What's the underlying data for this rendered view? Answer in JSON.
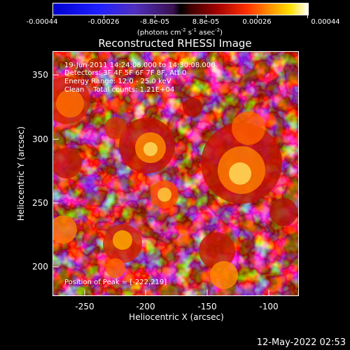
{
  "colorbar": {
    "ticks": [
      "-0.00044",
      "-0.00026",
      "-8.8e-05",
      "8.8e-05",
      "0.00026",
      "0.00044"
    ],
    "units_main": "(photons cm",
    "units_exp1": "-2",
    "units_mid1": " s",
    "units_exp2": "-1",
    "units_mid2": " asec",
    "units_exp3": "-2",
    "units_end": ")"
  },
  "title": "Reconstructed RHESSI Image",
  "info": {
    "line1": "19-Jun-2011 14:24:08.000 to 14:30:08.000",
    "line2": "Detectors: 3F 4F 5F 6F 7F 8F, Att 0",
    "line3": "Energy Range: 12.0 - 25.0 keV",
    "line4": "Clean    Total counts: 1.21E+04",
    "peak": "Position of Peak = [-222,219]"
  },
  "axes": {
    "xlabel": "Heliocentric X (arcsec)",
    "ylabel": "Heliocentric Y (arcsec)",
    "xticks": [
      "-250",
      "-200",
      "-150",
      "-100"
    ],
    "yticks": [
      "350",
      "300",
      "250",
      "200"
    ],
    "xlim": [
      -273,
      -80
    ],
    "ylim": [
      177,
      370
    ]
  },
  "timestamp": "12-May-2022 02:53"
}
